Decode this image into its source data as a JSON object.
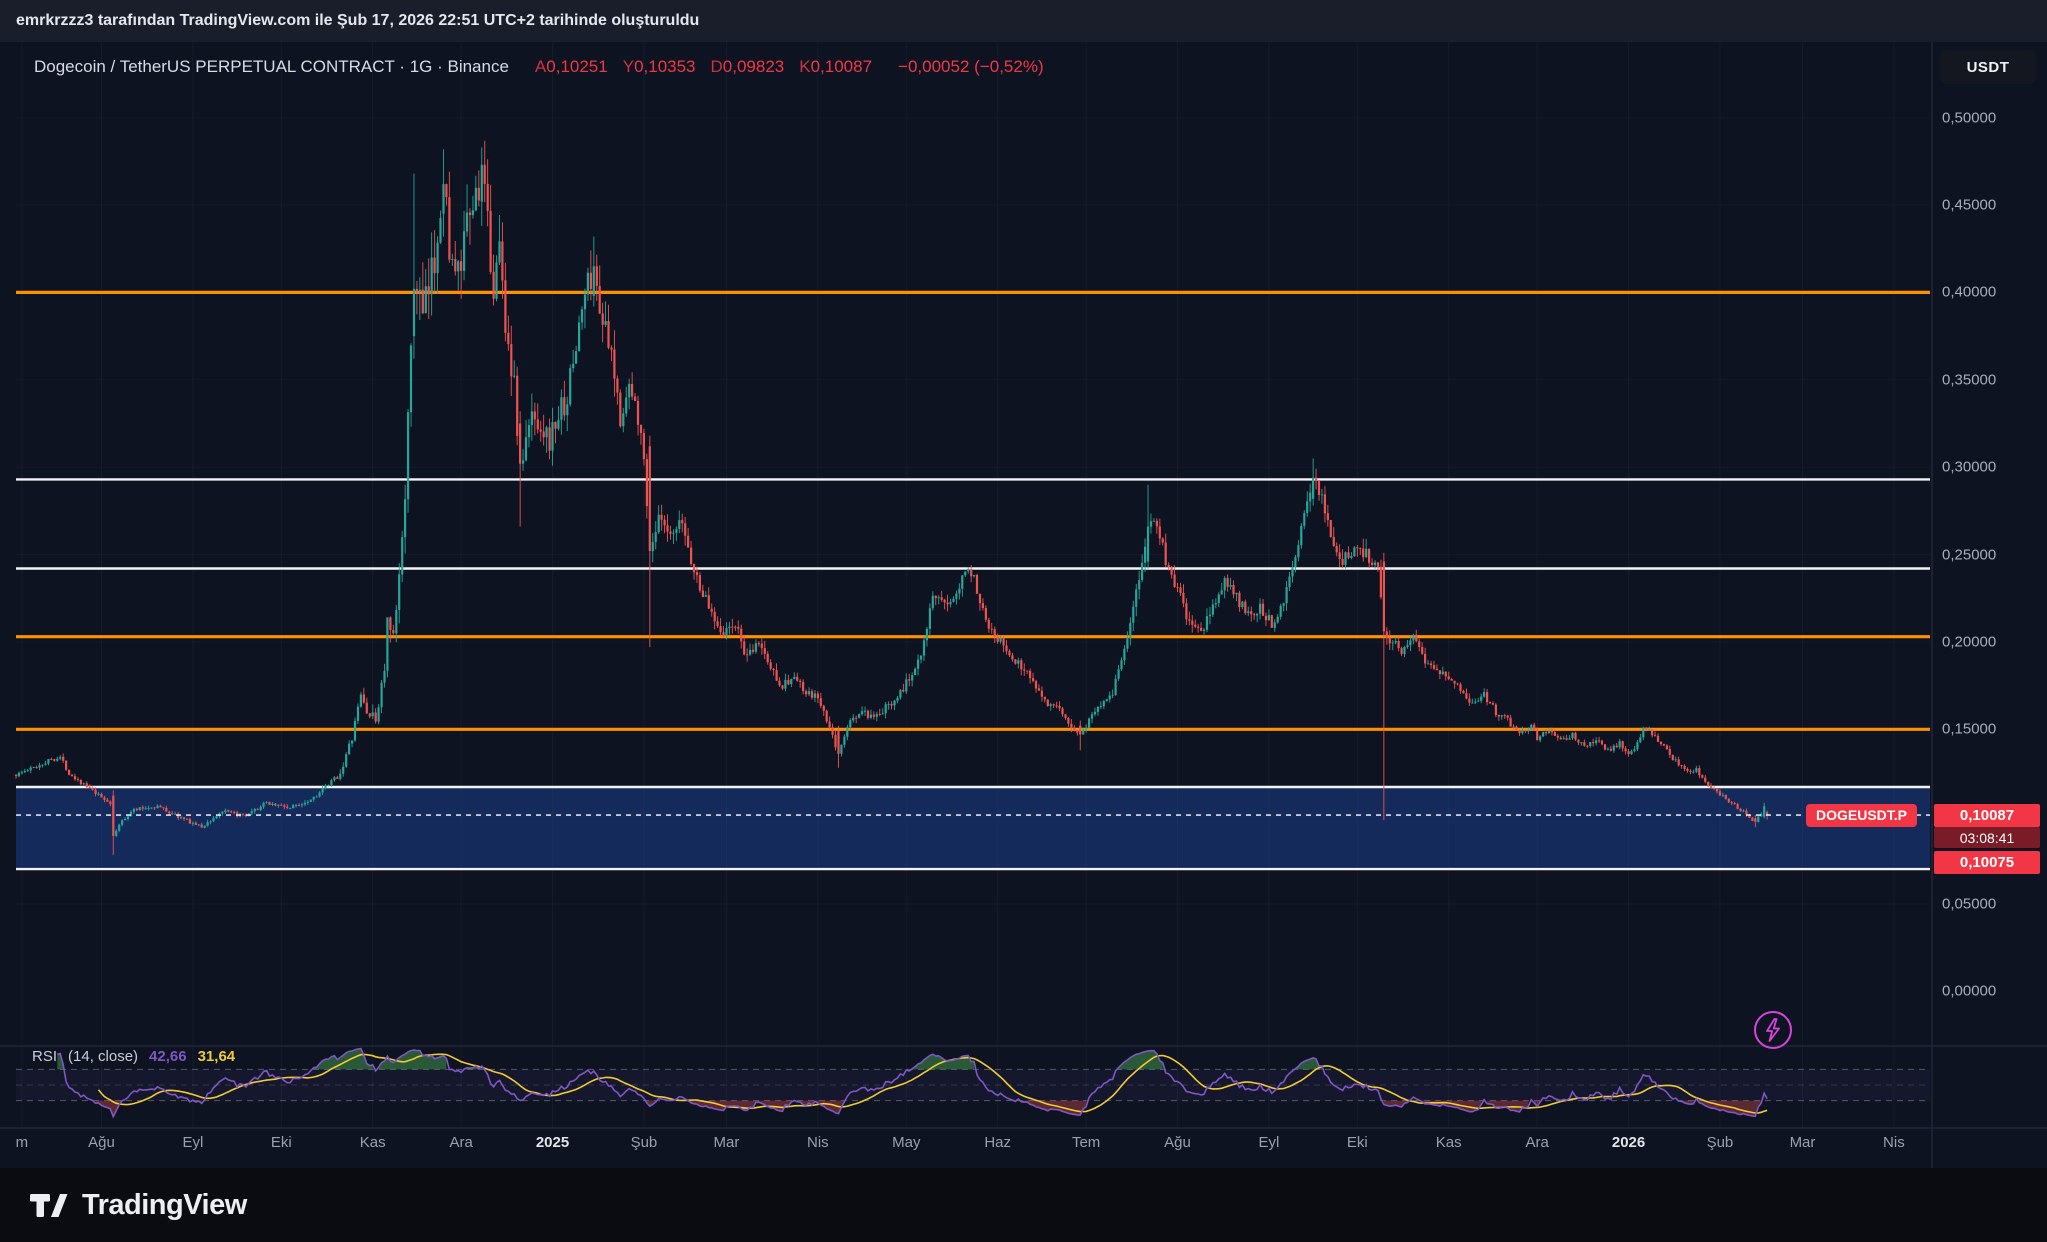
{
  "attribution": {
    "text": "emrkrzzz3 tarafından TradingView.com ile Şub 17, 2026 22:51 UTC+2 tarihinde oluşturuldu"
  },
  "header": {
    "symbol_title": "Dogecoin / TetherUS PERPETUAL CONTRACT · 1G · Binance",
    "ohlc": [
      {
        "key": "A",
        "value": "0,10251"
      },
      {
        "key": "Y",
        "value": "0,10353"
      },
      {
        "key": "D",
        "value": "0,09823"
      },
      {
        "key": "K",
        "value": "0,10087"
      }
    ],
    "change": "−0,00052 (−0,52%)",
    "currency_button": "USDT"
  },
  "price_axis": {
    "labels": [
      {
        "text": "0,50000",
        "price": 0.5
      },
      {
        "text": "0,45000",
        "price": 0.45
      },
      {
        "text": "0,40000",
        "price": 0.4
      },
      {
        "text": "0,35000",
        "price": 0.35
      },
      {
        "text": "0,30000",
        "price": 0.3
      },
      {
        "text": "0,25000",
        "price": 0.25
      },
      {
        "text": "0,20000",
        "price": 0.2
      },
      {
        "text": "0,15000",
        "price": 0.15
      },
      {
        "text": "0,05000",
        "price": 0.05
      },
      {
        "text": "0,00000",
        "price": 0.0
      }
    ],
    "current_price_badge": "0,10087",
    "countdown": "03:08:41",
    "alert_badge": "0,10075"
  },
  "price_line_tag": "DOGEUSDT.P",
  "time_axis": {
    "ticks": [
      {
        "label": "m",
        "t": 2,
        "year": false
      },
      {
        "label": "Ağu",
        "t": 29,
        "year": false
      },
      {
        "label": "Eyl",
        "t": 60,
        "year": false
      },
      {
        "label": "Eki",
        "t": 90,
        "year": false
      },
      {
        "label": "Kas",
        "t": 121,
        "year": false
      },
      {
        "label": "Ara",
        "t": 151,
        "year": false
      },
      {
        "label": "2025",
        "t": 182,
        "year": true
      },
      {
        "label": "Şub",
        "t": 213,
        "year": false
      },
      {
        "label": "Mar",
        "t": 241,
        "year": false
      },
      {
        "label": "Nis",
        "t": 272,
        "year": false
      },
      {
        "label": "May",
        "t": 302,
        "year": false
      },
      {
        "label": "Haz",
        "t": 333,
        "year": false
      },
      {
        "label": "Tem",
        "t": 363,
        "year": false
      },
      {
        "label": "Ağu",
        "t": 394,
        "year": false
      },
      {
        "label": "Eyl",
        "t": 425,
        "year": false
      },
      {
        "label": "Eki",
        "t": 455,
        "year": false
      },
      {
        "label": "Kas",
        "t": 486,
        "year": false
      },
      {
        "label": "Ara",
        "t": 516,
        "year": false
      },
      {
        "label": "2026",
        "t": 547,
        "year": true
      },
      {
        "label": "Şub",
        "t": 578,
        "year": false
      },
      {
        "label": "Mar",
        "t": 606,
        "year": false
      },
      {
        "label": "Nis",
        "t": 637,
        "year": false
      }
    ]
  },
  "rsi_panel": {
    "title": "RSI",
    "params": "(14, close)",
    "value_main": "42,66",
    "value_ma": "31,64"
  },
  "footer": {
    "brand": "TradingView"
  },
  "colors": {
    "up": "#26a69a",
    "down": "#ef5350",
    "orange_line": "#ff9100",
    "white_line": "#f2f3f5",
    "zone_fill": "rgba(31,78,180,0.40)",
    "rsi": "#7e57c2",
    "rsi_ma": "#f0cb35",
    "price_badge_bg": "#f23645",
    "countdown_bg": "#7a1c27",
    "current_line": "#ffffff",
    "lightning": "#d743dd",
    "grid": "rgba(180,190,210,0.055)"
  },
  "chart_data": {
    "type": "candlestick",
    "symbol": "DOGEUSDT.P",
    "pair": "Dogecoin / TetherUS",
    "contract": "PERPETUAL CONTRACT",
    "exchange": "Binance",
    "timeframe": "1G",
    "quote_currency": "USDT",
    "last_candle": {
      "open": 0.10251,
      "high": 0.10353,
      "low": 0.09823,
      "close": 0.10087,
      "change": -0.00052,
      "change_pct": -0.52
    },
    "current_price": 0.10087,
    "alert_price": 0.10075,
    "y_axis": {
      "min": 0.0,
      "max": 0.52,
      "tick_step": 0.05
    },
    "x_axis_note": "daily candles, Jul 2024 (t=0) through Feb 17 2026 (t=594), future axis to Apr 2026",
    "horizontal_lines": [
      {
        "price": 0.4,
        "color": "orange"
      },
      {
        "price": 0.293,
        "color": "white"
      },
      {
        "price": 0.242,
        "color": "white"
      },
      {
        "price": 0.203,
        "color": "orange"
      },
      {
        "price": 0.15,
        "color": "orange"
      },
      {
        "price": 0.117,
        "color": "white"
      },
      {
        "price": 0.07,
        "color": "white"
      }
    ],
    "zone": {
      "top": 0.117,
      "bottom": 0.07
    },
    "days_total": 595,
    "price_keyframes": [
      [
        0,
        0.124
      ],
      [
        6,
        0.128
      ],
      [
        12,
        0.133
      ],
      [
        15,
        0.134
      ],
      [
        18,
        0.125
      ],
      [
        24,
        0.117
      ],
      [
        28,
        0.112
      ],
      [
        32,
        0.108
      ],
      [
        33,
        0.089
      ],
      [
        36,
        0.098
      ],
      [
        40,
        0.104
      ],
      [
        48,
        0.106
      ],
      [
        55,
        0.1
      ],
      [
        63,
        0.094
      ],
      [
        70,
        0.103
      ],
      [
        78,
        0.1
      ],
      [
        85,
        0.108
      ],
      [
        93,
        0.105
      ],
      [
        100,
        0.11
      ],
      [
        106,
        0.118
      ],
      [
        110,
        0.125
      ],
      [
        114,
        0.145
      ],
      [
        117,
        0.17
      ],
      [
        119,
        0.16
      ],
      [
        122,
        0.155
      ],
      [
        125,
        0.185
      ],
      [
        126,
        0.21
      ],
      [
        128,
        0.2
      ],
      [
        130,
        0.235
      ],
      [
        132,
        0.29
      ],
      [
        134,
        0.36
      ],
      [
        135,
        0.402
      ],
      [
        136,
        0.405
      ],
      [
        138,
        0.385
      ],
      [
        140,
        0.4
      ],
      [
        142,
        0.42
      ],
      [
        144,
        0.455
      ],
      [
        145,
        0.462
      ],
      [
        147,
        0.43
      ],
      [
        149,
        0.405
      ],
      [
        151,
        0.415
      ],
      [
        153,
        0.435
      ],
      [
        156,
        0.455
      ],
      [
        158,
        0.473
      ],
      [
        160,
        0.435
      ],
      [
        162,
        0.405
      ],
      [
        164,
        0.425
      ],
      [
        166,
        0.385
      ],
      [
        169,
        0.345
      ],
      [
        171,
        0.302
      ],
      [
        172,
        0.305
      ],
      [
        175,
        0.33
      ],
      [
        178,
        0.325
      ],
      [
        181,
        0.315
      ],
      [
        184,
        0.33
      ],
      [
        187,
        0.34
      ],
      [
        190,
        0.37
      ],
      [
        193,
        0.4
      ],
      [
        196,
        0.415
      ],
      [
        199,
        0.385
      ],
      [
        202,
        0.36
      ],
      [
        205,
        0.33
      ],
      [
        208,
        0.345
      ],
      [
        212,
        0.325
      ],
      [
        215,
        0.252
      ],
      [
        218,
        0.27
      ],
      [
        222,
        0.258
      ],
      [
        226,
        0.268
      ],
      [
        230,
        0.24
      ],
      [
        235,
        0.22
      ],
      [
        240,
        0.205
      ],
      [
        244,
        0.21
      ],
      [
        248,
        0.19
      ],
      [
        252,
        0.2
      ],
      [
        256,
        0.185
      ],
      [
        260,
        0.175
      ],
      [
        264,
        0.18
      ],
      [
        268,
        0.17
      ],
      [
        272,
        0.168
      ],
      [
        276,
        0.15
      ],
      [
        279,
        0.136
      ],
      [
        283,
        0.155
      ],
      [
        287,
        0.16
      ],
      [
        291,
        0.155
      ],
      [
        295,
        0.162
      ],
      [
        299,
        0.17
      ],
      [
        303,
        0.178
      ],
      [
        307,
        0.195
      ],
      [
        311,
        0.225
      ],
      [
        315,
        0.22
      ],
      [
        319,
        0.23
      ],
      [
        323,
        0.245
      ],
      [
        326,
        0.23
      ],
      [
        330,
        0.21
      ],
      [
        334,
        0.2
      ],
      [
        338,
        0.19
      ],
      [
        342,
        0.185
      ],
      [
        346,
        0.175
      ],
      [
        350,
        0.165
      ],
      [
        354,
        0.16
      ],
      [
        358,
        0.152
      ],
      [
        361,
        0.147
      ],
      [
        365,
        0.158
      ],
      [
        368,
        0.165
      ],
      [
        372,
        0.172
      ],
      [
        375,
        0.19
      ],
      [
        378,
        0.21
      ],
      [
        381,
        0.235
      ],
      [
        384,
        0.266
      ],
      [
        387,
        0.27
      ],
      [
        390,
        0.245
      ],
      [
        394,
        0.23
      ],
      [
        398,
        0.21
      ],
      [
        402,
        0.205
      ],
      [
        406,
        0.22
      ],
      [
        410,
        0.235
      ],
      [
        414,
        0.225
      ],
      [
        418,
        0.215
      ],
      [
        422,
        0.22
      ],
      [
        426,
        0.21
      ],
      [
        430,
        0.225
      ],
      [
        434,
        0.25
      ],
      [
        437,
        0.27
      ],
      [
        440,
        0.294
      ],
      [
        443,
        0.285
      ],
      [
        446,
        0.26
      ],
      [
        450,
        0.245
      ],
      [
        454,
        0.255
      ],
      [
        458,
        0.25
      ],
      [
        462,
        0.245
      ],
      [
        464,
        0.206
      ],
      [
        467,
        0.2
      ],
      [
        470,
        0.195
      ],
      [
        474,
        0.205
      ],
      [
        478,
        0.19
      ],
      [
        482,
        0.185
      ],
      [
        486,
        0.18
      ],
      [
        490,
        0.172
      ],
      [
        494,
        0.165
      ],
      [
        498,
        0.17
      ],
      [
        502,
        0.16
      ],
      [
        506,
        0.155
      ],
      [
        510,
        0.148
      ],
      [
        514,
        0.152
      ],
      [
        516,
        0.145
      ],
      [
        520,
        0.15
      ],
      [
        524,
        0.143
      ],
      [
        528,
        0.147
      ],
      [
        532,
        0.14
      ],
      [
        536,
        0.144
      ],
      [
        540,
        0.138
      ],
      [
        544,
        0.142
      ],
      [
        547,
        0.136
      ],
      [
        549,
        0.138
      ],
      [
        552,
        0.15
      ],
      [
        555,
        0.148
      ],
      [
        558,
        0.142
      ],
      [
        561,
        0.135
      ],
      [
        564,
        0.13
      ],
      [
        567,
        0.125
      ],
      [
        570,
        0.127
      ],
      [
        573,
        0.12
      ],
      [
        576,
        0.115
      ],
      [
        579,
        0.112
      ],
      [
        582,
        0.108
      ],
      [
        585,
        0.104
      ],
      [
        588,
        0.1
      ],
      [
        590,
        0.097
      ],
      [
        592,
        0.102
      ],
      [
        593,
        0.106
      ],
      [
        594,
        0.10087
      ]
    ],
    "volatility_keyframes": [
      [
        0,
        0.03
      ],
      [
        100,
        0.03
      ],
      [
        115,
        0.045
      ],
      [
        126,
        0.075
      ],
      [
        132,
        0.085
      ],
      [
        166,
        0.075
      ],
      [
        181,
        0.06
      ],
      [
        196,
        0.065
      ],
      [
        215,
        0.055
      ],
      [
        240,
        0.045
      ],
      [
        272,
        0.04
      ],
      [
        303,
        0.045
      ],
      [
        330,
        0.04
      ],
      [
        365,
        0.035
      ],
      [
        381,
        0.05
      ],
      [
        394,
        0.045
      ],
      [
        426,
        0.04
      ],
      [
        446,
        0.045
      ],
      [
        464,
        0.05
      ],
      [
        470,
        0.04
      ],
      [
        516,
        0.03
      ],
      [
        547,
        0.028
      ],
      [
        564,
        0.03
      ],
      [
        594,
        0.028
      ]
    ],
    "override_candles": [
      [
        33,
        0.112,
        0.115,
        0.078,
        0.089
      ],
      [
        135,
        0.375,
        0.468,
        0.362,
        0.402
      ],
      [
        145,
        0.445,
        0.482,
        0.432,
        0.462
      ],
      [
        158,
        0.452,
        0.483,
        0.438,
        0.473
      ],
      [
        171,
        0.325,
        0.332,
        0.266,
        0.302
      ],
      [
        196,
        0.398,
        0.432,
        0.392,
        0.415
      ],
      [
        215,
        0.312,
        0.318,
        0.197,
        0.252
      ],
      [
        279,
        0.149,
        0.152,
        0.128,
        0.136
      ],
      [
        361,
        0.152,
        0.155,
        0.138,
        0.147
      ],
      [
        384,
        0.246,
        0.29,
        0.242,
        0.266
      ],
      [
        440,
        0.282,
        0.305,
        0.278,
        0.294
      ],
      [
        464,
        0.246,
        0.251,
        0.098,
        0.206
      ],
      [
        590,
        0.099,
        0.101,
        0.094,
        0.097
      ],
      [
        593,
        0.1,
        0.108,
        0.099,
        0.106
      ],
      [
        594,
        0.10251,
        0.10353,
        0.09823,
        0.10087
      ]
    ],
    "indicator": {
      "name": "RSI",
      "period": 14,
      "source": "close",
      "current": 42.66,
      "ma_current": 31.64,
      "levels": [
        70,
        50,
        30
      ],
      "range": [
        0,
        100
      ]
    }
  }
}
